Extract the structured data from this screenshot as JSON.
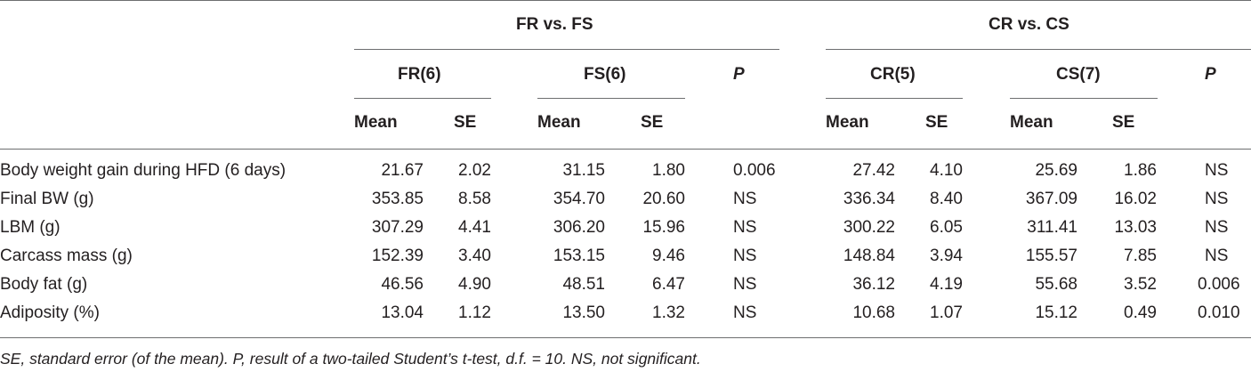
{
  "table": {
    "groups": [
      {
        "title": "FR vs. FS",
        "subgroups": [
          "FR(6)",
          "FS(6)"
        ],
        "p_label": "P"
      },
      {
        "title": "CR vs. CS",
        "subgroups": [
          "CR(5)",
          "CS(7)"
        ],
        "p_label": "P"
      }
    ],
    "stat_labels": {
      "mean": "Mean",
      "se": "SE"
    },
    "rows": [
      {
        "label": "Body weight gain during HFD (6 days)",
        "values": [
          "21.67",
          "2.02",
          "31.15",
          "1.80",
          "0.006",
          "27.42",
          "4.10",
          "25.69",
          "1.86",
          "NS"
        ]
      },
      {
        "label": "Final BW (g)",
        "values": [
          "353.85",
          "8.58",
          "354.70",
          "20.60",
          "NS",
          "336.34",
          "8.40",
          "367.09",
          "16.02",
          "NS"
        ]
      },
      {
        "label": "LBM (g)",
        "values": [
          "307.29",
          "4.41",
          "306.20",
          "15.96",
          "NS",
          "300.22",
          "6.05",
          "311.41",
          "13.03",
          "NS"
        ]
      },
      {
        "label": "Carcass mass (g)",
        "values": [
          "152.39",
          "3.40",
          "153.15",
          "9.46",
          "NS",
          "148.84",
          "3.94",
          "155.57",
          "7.85",
          "NS"
        ]
      },
      {
        "label": "Body fat (g)",
        "values": [
          "46.56",
          "4.90",
          "48.51",
          "6.47",
          "NS",
          "36.12",
          "4.19",
          "55.68",
          "3.52",
          "0.006"
        ]
      },
      {
        "label": "Adiposity (%)",
        "values": [
          "13.04",
          "1.12",
          "13.50",
          "1.32",
          "NS",
          "10.68",
          "1.07",
          "15.12",
          "0.49",
          "0.010"
        ]
      }
    ]
  },
  "caption": "SE, standard error (of the mean). P, result of a two-tailed Student’s t-test, d.f. = 10. NS, not significant."
}
